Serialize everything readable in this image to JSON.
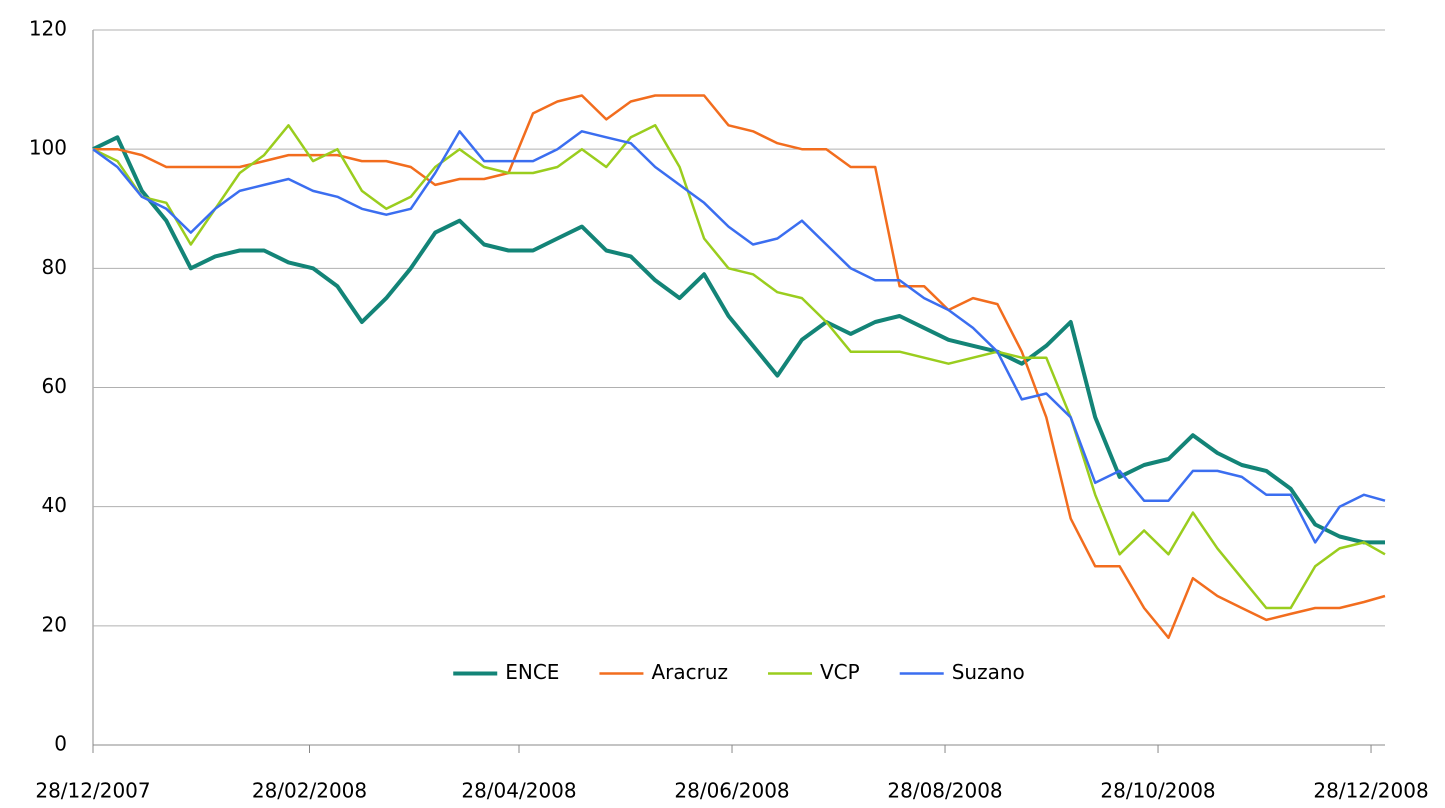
{
  "chart_data": {
    "type": "line",
    "x": [
      "2007-12-28",
      "2008-01-04",
      "2008-01-11",
      "2008-01-18",
      "2008-01-25",
      "2008-02-01",
      "2008-02-08",
      "2008-02-15",
      "2008-02-22",
      "2008-02-29",
      "2008-03-07",
      "2008-03-14",
      "2008-03-21",
      "2008-03-28",
      "2008-04-04",
      "2008-04-11",
      "2008-04-18",
      "2008-04-25",
      "2008-05-02",
      "2008-05-09",
      "2008-05-16",
      "2008-05-23",
      "2008-05-30",
      "2008-06-06",
      "2008-06-13",
      "2008-06-20",
      "2008-06-27",
      "2008-07-04",
      "2008-07-11",
      "2008-07-18",
      "2008-07-25",
      "2008-08-01",
      "2008-08-08",
      "2008-08-15",
      "2008-08-22",
      "2008-08-29",
      "2008-09-05",
      "2008-09-12",
      "2008-09-19",
      "2008-09-26",
      "2008-10-03",
      "2008-10-10",
      "2008-10-17",
      "2008-10-24",
      "2008-10-31",
      "2008-11-07",
      "2008-11-14",
      "2008-11-21",
      "2008-11-28",
      "2008-12-05",
      "2008-12-12",
      "2008-12-19",
      "2008-12-26",
      "2009-01-01"
    ],
    "series": [
      {
        "name": "ENCE",
        "color": "#138477",
        "width": 4,
        "values": [
          100,
          102,
          93,
          88,
          80,
          82,
          83,
          83,
          81,
          80,
          77,
          71,
          75,
          80,
          86,
          88,
          84,
          83,
          83,
          85,
          87,
          83,
          82,
          78,
          75,
          79,
          72,
          67,
          62,
          68,
          71,
          69,
          71,
          72,
          70,
          68,
          67,
          66,
          64,
          67,
          71,
          55,
          45,
          47,
          48,
          52,
          49,
          47,
          46,
          43,
          37,
          35,
          34,
          34
        ]
      },
      {
        "name": "Aracruz",
        "color": "#f26d1e",
        "width": 2.5,
        "values": [
          100,
          100,
          99,
          97,
          97,
          97,
          97,
          98,
          99,
          99,
          99,
          98,
          98,
          97,
          94,
          95,
          95,
          96,
          106,
          108,
          109,
          105,
          108,
          109,
          109,
          109,
          104,
          103,
          101,
          100,
          100,
          97,
          97,
          77,
          77,
          73,
          75,
          74,
          66,
          55,
          38,
          30,
          30,
          23,
          18,
          28,
          25,
          23,
          21,
          22,
          23,
          23,
          24,
          25
        ]
      },
      {
        "name": "VCP",
        "color": "#9acd1e",
        "width": 2.5,
        "values": [
          100,
          98,
          92,
          91,
          84,
          90,
          96,
          99,
          104,
          98,
          100,
          93,
          90,
          92,
          97,
          100,
          97,
          96,
          96,
          97,
          100,
          97,
          102,
          104,
          97,
          85,
          80,
          79,
          76,
          75,
          71,
          66,
          66,
          66,
          65,
          64,
          65,
          66,
          65,
          65,
          55,
          42,
          32,
          36,
          32,
          39,
          33,
          28,
          23,
          23,
          30,
          33,
          34,
          32
        ]
      },
      {
        "name": "Suzano",
        "color": "#3b6ef0",
        "width": 2.5,
        "values": [
          100,
          97,
          92,
          90,
          86,
          90,
          93,
          94,
          95,
          93,
          92,
          90,
          89,
          90,
          96,
          103,
          98,
          98,
          98,
          100,
          103,
          102,
          101,
          97,
          94,
          91,
          87,
          84,
          85,
          88,
          84,
          80,
          78,
          78,
          75,
          73,
          70,
          66,
          58,
          59,
          55,
          44,
          46,
          41,
          41,
          46,
          46,
          45,
          42,
          42,
          34,
          40,
          42,
          41
        ]
      }
    ],
    "xlim": [
      "2007-12-28",
      "2009-01-01"
    ],
    "xticks": [
      {
        "value": "2007-12-28",
        "label": "28/12/2007"
      },
      {
        "value": "2008-02-28",
        "label": "28/02/2008"
      },
      {
        "value": "2008-04-28",
        "label": "28/04/2008"
      },
      {
        "value": "2008-06-28",
        "label": "28/06/2008"
      },
      {
        "value": "2008-08-28",
        "label": "28/08/2008"
      },
      {
        "value": "2008-10-28",
        "label": "28/10/2008"
      },
      {
        "value": "2008-12-28",
        "label": "28/12/2008"
      }
    ],
    "ylim": [
      0,
      120
    ],
    "yticks": [
      0,
      20,
      40,
      60,
      80,
      100,
      120
    ],
    "grid": true,
    "legend": "lower center"
  }
}
